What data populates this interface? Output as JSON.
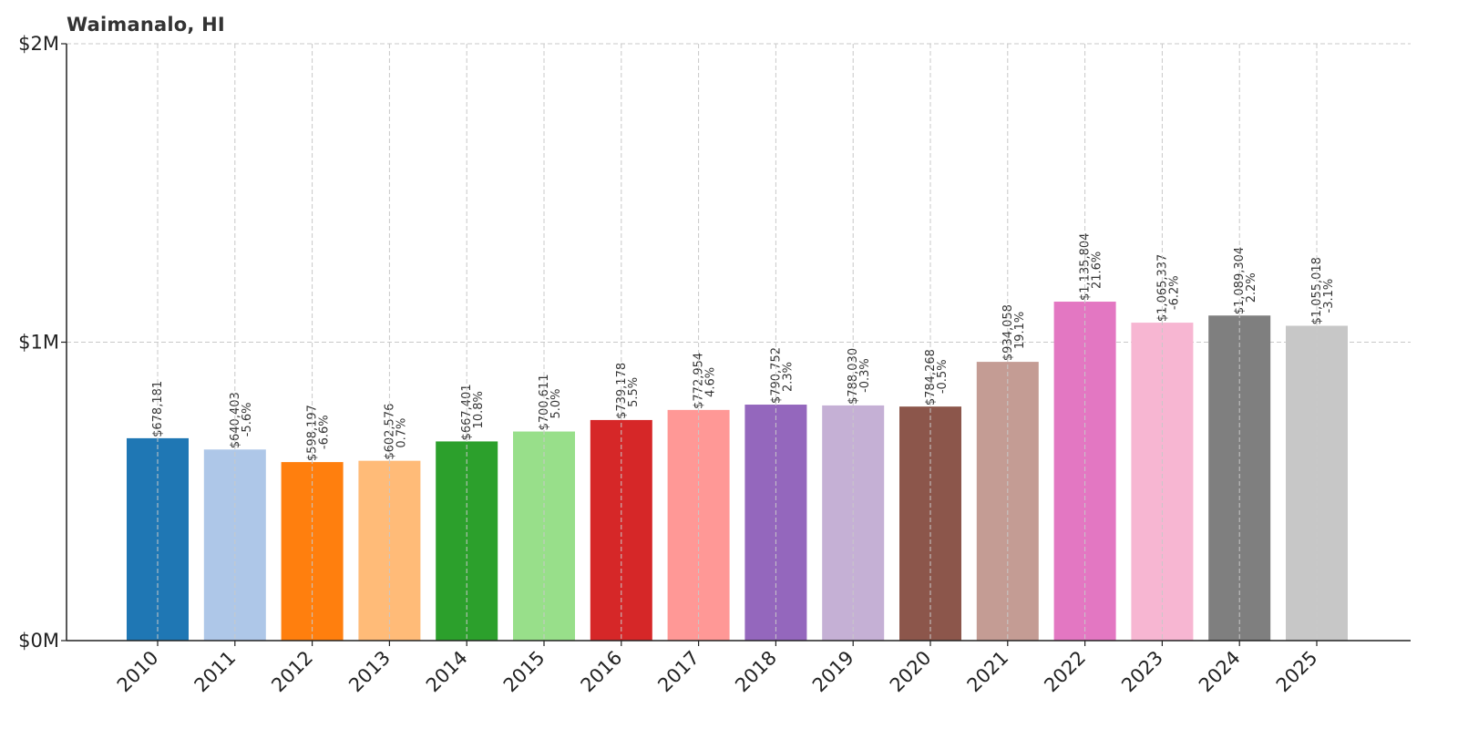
{
  "chart_data": {
    "type": "bar",
    "title": "Waimanalo, HI",
    "xlabel": "",
    "ylabel": "",
    "ylim": [
      0,
      2000000
    ],
    "grid": true,
    "y_ticks": [
      {
        "value": 0,
        "label": "$0M"
      },
      {
        "value": 1000000,
        "label": "$1M"
      },
      {
        "value": 2000000,
        "label": "$2M"
      }
    ],
    "categories": [
      "2010",
      "2011",
      "2012",
      "2013",
      "2014",
      "2015",
      "2016",
      "2017",
      "2018",
      "2019",
      "2020",
      "2021",
      "2022",
      "2023",
      "2024",
      "2025"
    ],
    "values": [
      678181,
      640403,
      598197,
      602576,
      667401,
      700611,
      739178,
      772954,
      790752,
      788030,
      784268,
      934058,
      1135804,
      1065337,
      1089304,
      1055018
    ],
    "value_labels": [
      "$678,181",
      "$640,403",
      "$598,197",
      "$602,576",
      "$667,401",
      "$700,611",
      "$739,178",
      "$772,954",
      "$790,752",
      "$788,030",
      "$784,268",
      "$934,058",
      "$1,135,804",
      "$1,065,337",
      "$1,089,304",
      "$1,055,018"
    ],
    "change_labels": [
      "",
      "-5.6%",
      "-6.6%",
      "0.7%",
      "10.8%",
      "5.0%",
      "5.5%",
      "4.6%",
      "2.3%",
      "-0.3%",
      "-0.5%",
      "19.1%",
      "21.6%",
      "-6.2%",
      "2.2%",
      "-3.1%"
    ],
    "colors": [
      "#1f77b4",
      "#aec7e8",
      "#ff7f0e",
      "#ffbb78",
      "#2ca02c",
      "#98df8a",
      "#d62728",
      "#ff9896",
      "#9467bd",
      "#c5b0d5",
      "#8c564b",
      "#c49c94",
      "#e377c2",
      "#f7b6d2",
      "#7f7f7f",
      "#c7c7c7"
    ]
  }
}
